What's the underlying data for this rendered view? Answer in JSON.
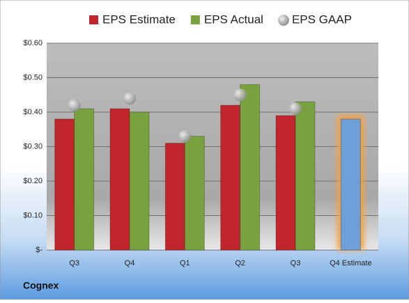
{
  "chart_data": {
    "type": "bar",
    "label": "Cognex",
    "categories": [
      "Q3",
      "Q4",
      "Q1",
      "Q2",
      "Q3",
      "Q4 Estimate"
    ],
    "series": [
      {
        "name": "EPS Estimate",
        "color": "#c0262b",
        "values": [
          0.38,
          0.41,
          0.31,
          0.42,
          0.39,
          0.38
        ],
        "point_colors": [
          null,
          null,
          null,
          null,
          null,
          "#6f9fd8"
        ]
      },
      {
        "name": "EPS Actual",
        "color": "#79a140",
        "values": [
          0.41,
          0.4,
          0.33,
          0.48,
          0.43,
          null
        ]
      },
      {
        "name": "EPS GAAP",
        "color": "#a6a6a6",
        "marker": "circle",
        "values": [
          0.42,
          0.44,
          0.33,
          0.45,
          0.41,
          null
        ]
      }
    ],
    "ylim": [
      0,
      0.6
    ],
    "yticks": [
      {
        "value": 0,
        "label": "$-"
      },
      {
        "value": 0.1,
        "label": "$0.10"
      },
      {
        "value": 0.2,
        "label": "$0.20"
      },
      {
        "value": 0.3,
        "label": "$0.30"
      },
      {
        "value": 0.4,
        "label": "$0.40"
      },
      {
        "value": 0.5,
        "label": "$0.50"
      },
      {
        "value": 0.6,
        "label": "$0.60"
      }
    ],
    "grid": true,
    "legend": "top"
  }
}
